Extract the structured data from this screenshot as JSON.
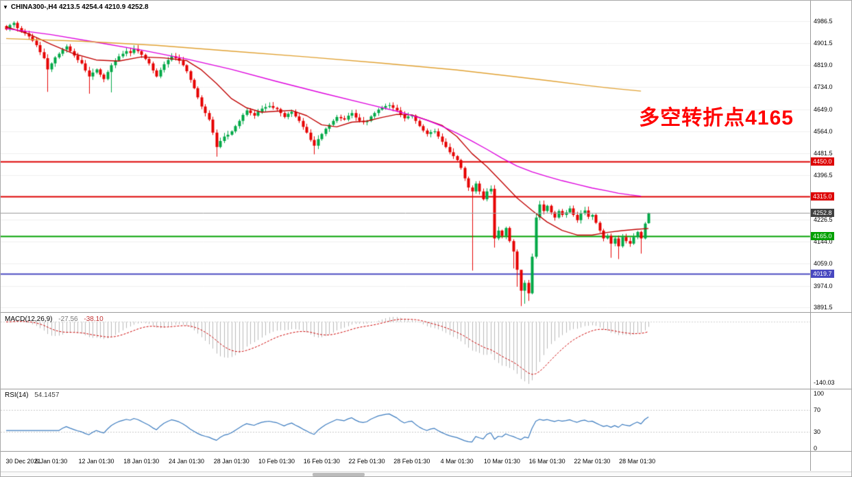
{
  "header": {
    "symbol_title": "CHINA300-,H4 4213.5 4254.4 4210.9 4252.8",
    "dropdown_icon": "▼"
  },
  "annotation": {
    "text": "多空转折点4165",
    "color": "#ff0000"
  },
  "macd_panel": {
    "name": "MACD(12,26,9)",
    "value_main": "-27.56",
    "value_signal": "-38.10",
    "axis_min_label": "-140.03"
  },
  "rsi_panel": {
    "name": "RSI(14)",
    "value": "54.1457",
    "axis_labels": [
      "100",
      "70",
      "30",
      "0"
    ]
  },
  "chart_data": {
    "type": "candlestick",
    "title": "CHINA300- H4",
    "ylim": [
      3891.5,
      4986.5
    ],
    "y_ticks": [
      "4986.5",
      "4901.5",
      "4819.0",
      "4734.0",
      "4649.0",
      "4564.0",
      "4481.5",
      "4396.5",
      "4226.5",
      "4144.0",
      "4059.0",
      "3974.0",
      "3891.5"
    ],
    "x_labels": [
      "30 Dec 2021",
      "6 Jan 01:30",
      "12 Jan 01:30",
      "18 Jan 01:30",
      "24 Jan 01:30",
      "28 Jan 01:30",
      "10 Feb 01:30",
      "16 Feb 01:30",
      "22 Feb 01:30",
      "28 Feb 01:30",
      "4 Mar 01:30",
      "10 Mar 01:30",
      "16 Mar 01:30",
      "22 Mar 01:30",
      "28 Mar 01:30"
    ],
    "x_label_step": 12,
    "bid": {
      "price": 4252.8,
      "label": "4252.8",
      "line_color": "#9a9a9a",
      "label_color": "#404040"
    },
    "hlines": [
      {
        "price": 4450.0,
        "label": "4450.0",
        "color": "#dd0000",
        "width": 2
      },
      {
        "price": 4315.0,
        "label": "4315.0",
        "color": "#dd0000",
        "width": 2
      },
      {
        "price": 4165.0,
        "label": "4165.0",
        "color": "#00a000",
        "width": 2
      },
      {
        "price": 4019.7,
        "label": "4019.7",
        "color": "#4848c0",
        "width": 2
      }
    ],
    "candles": {
      "first_open": 4968,
      "up_color": "#00a847",
      "down_color": "#e60000",
      "closes": [
        4955,
        4972,
        4980,
        4960,
        4948,
        4940,
        4928,
        4912,
        4895,
        4868,
        4845,
        4802,
        4825,
        4848,
        4862,
        4878,
        4890,
        4872,
        4855,
        4838,
        4825,
        4798,
        4775,
        4790,
        4802,
        4782,
        4765,
        4792,
        4818,
        4836,
        4852,
        4862,
        4872,
        4865,
        4880,
        4872,
        4858,
        4842,
        4825,
        4798,
        4775,
        4800,
        4822,
        4838,
        4852,
        4845,
        4835,
        4818,
        4795,
        4762,
        4730,
        4695,
        4660,
        4635,
        4610,
        4560,
        4505,
        4528,
        4545,
        4552,
        4565,
        4585,
        4605,
        4628,
        4645,
        4635,
        4625,
        4640,
        4652,
        4658,
        4662,
        4655,
        4650,
        4635,
        4620,
        4632,
        4640,
        4622,
        4605,
        4582,
        4560,
        4532,
        4510,
        4535,
        4555,
        4575,
        4590,
        4605,
        4620,
        4615,
        4610,
        4625,
        4635,
        4618,
        4605,
        4600,
        4605,
        4622,
        4635,
        4648,
        4655,
        4662,
        4665,
        4655,
        4645,
        4628,
        4615,
        4622,
        4625,
        4605,
        4585,
        4568,
        4555,
        4562,
        4565,
        4545,
        4525,
        4505,
        4485,
        4470,
        4455,
        4425,
        4385,
        4350,
        4335,
        4365,
        4335,
        4305,
        4335,
        4345,
        4155,
        4185,
        4165,
        4195,
        4145,
        4105,
        4035,
        3955,
        3985,
        3945,
        4085,
        4235,
        4285,
        4260,
        4280,
        4255,
        4235,
        4260,
        4245,
        4255,
        4270,
        4245,
        4225,
        4250,
        4262,
        4238,
        4245,
        4215,
        4185,
        4155,
        4165,
        4135,
        4155,
        4125,
        4160,
        4145,
        4135,
        4160,
        4180,
        4155,
        4212,
        4252.8
      ],
      "wick_overrides": {
        "2": {
          "high": 4986.5
        },
        "11": {
          "low": 4716
        },
        "22": {
          "low": 4709
        },
        "28": {
          "low": 4714
        },
        "56": {
          "low": 4468
        },
        "82": {
          "low": 4477
        },
        "124": {
          "low": 4032
        },
        "130": {
          "low": 4120
        },
        "135": {
          "low": 4040
        },
        "136": {
          "low": 3970
        },
        "137": {
          "low": 3896,
          "high": 4015
        },
        "138": {
          "low": 3905
        },
        "139": {
          "low": 3916
        },
        "161": {
          "low": 4081
        },
        "163": {
          "low": 4076
        },
        "169": {
          "low": 4097
        }
      },
      "last_ohlc": [
        4213.5,
        4254.4,
        4210.9,
        4252.8
      ]
    },
    "moving_averages": [
      {
        "name": "fast",
        "color": "#c00000",
        "points": [
          [
            0,
            4965
          ],
          [
            6,
            4938
          ],
          [
            12,
            4898
          ],
          [
            18,
            4862
          ],
          [
            24,
            4838
          ],
          [
            30,
            4834
          ],
          [
            36,
            4850
          ],
          [
            42,
            4846
          ],
          [
            48,
            4836
          ],
          [
            52,
            4800
          ],
          [
            56,
            4748
          ],
          [
            60,
            4690
          ],
          [
            64,
            4655
          ],
          [
            68,
            4638
          ],
          [
            72,
            4642
          ],
          [
            76,
            4645
          ],
          [
            80,
            4625
          ],
          [
            84,
            4590
          ],
          [
            88,
            4582
          ],
          [
            92,
            4600
          ],
          [
            96,
            4604
          ],
          [
            100,
            4618
          ],
          [
            104,
            4630
          ],
          [
            108,
            4628
          ],
          [
            112,
            4608
          ],
          [
            116,
            4588
          ],
          [
            120,
            4545
          ],
          [
            124,
            4480
          ],
          [
            128,
            4430
          ],
          [
            132,
            4370
          ],
          [
            136,
            4310
          ],
          [
            140,
            4262
          ],
          [
            144,
            4218
          ],
          [
            148,
            4186
          ],
          [
            152,
            4168
          ],
          [
            156,
            4168
          ],
          [
            160,
            4178
          ],
          [
            164,
            4185
          ],
          [
            168,
            4190
          ],
          [
            171,
            4193
          ]
        ]
      },
      {
        "name": "mid",
        "color": "#dd00dd",
        "points": [
          [
            0,
            4958
          ],
          [
            12,
            4935
          ],
          [
            24,
            4906
          ],
          [
            36,
            4876
          ],
          [
            48,
            4842
          ],
          [
            60,
            4802
          ],
          [
            72,
            4756
          ],
          [
            84,
            4712
          ],
          [
            96,
            4670
          ],
          [
            104,
            4642
          ],
          [
            108,
            4626
          ],
          [
            112,
            4608
          ],
          [
            116,
            4585
          ],
          [
            120,
            4558
          ],
          [
            124,
            4528
          ],
          [
            128,
            4496
          ],
          [
            132,
            4462
          ],
          [
            136,
            4432
          ],
          [
            140,
            4410
          ],
          [
            144,
            4392
          ],
          [
            148,
            4376
          ],
          [
            152,
            4362
          ],
          [
            156,
            4348
          ],
          [
            160,
            4337
          ],
          [
            163,
            4328
          ],
          [
            166,
            4322
          ],
          [
            169,
            4317
          ]
        ]
      },
      {
        "name": "slow",
        "color": "#e0a030",
        "points": [
          [
            0,
            4920
          ],
          [
            20,
            4910
          ],
          [
            40,
            4894
          ],
          [
            60,
            4872
          ],
          [
            80,
            4850
          ],
          [
            100,
            4826
          ],
          [
            120,
            4800
          ],
          [
            135,
            4775
          ],
          [
            145,
            4758
          ],
          [
            155,
            4740
          ],
          [
            161,
            4730
          ],
          [
            169,
            4719
          ]
        ]
      }
    ],
    "macd": {
      "fast": 12,
      "slow": 26,
      "signal": 9,
      "histogram_color": "#b8b8b8",
      "signal_color": "#cc0000"
    },
    "rsi": {
      "period": 14,
      "color": "#3b7bbf",
      "levels": [
        70,
        30
      ]
    }
  }
}
